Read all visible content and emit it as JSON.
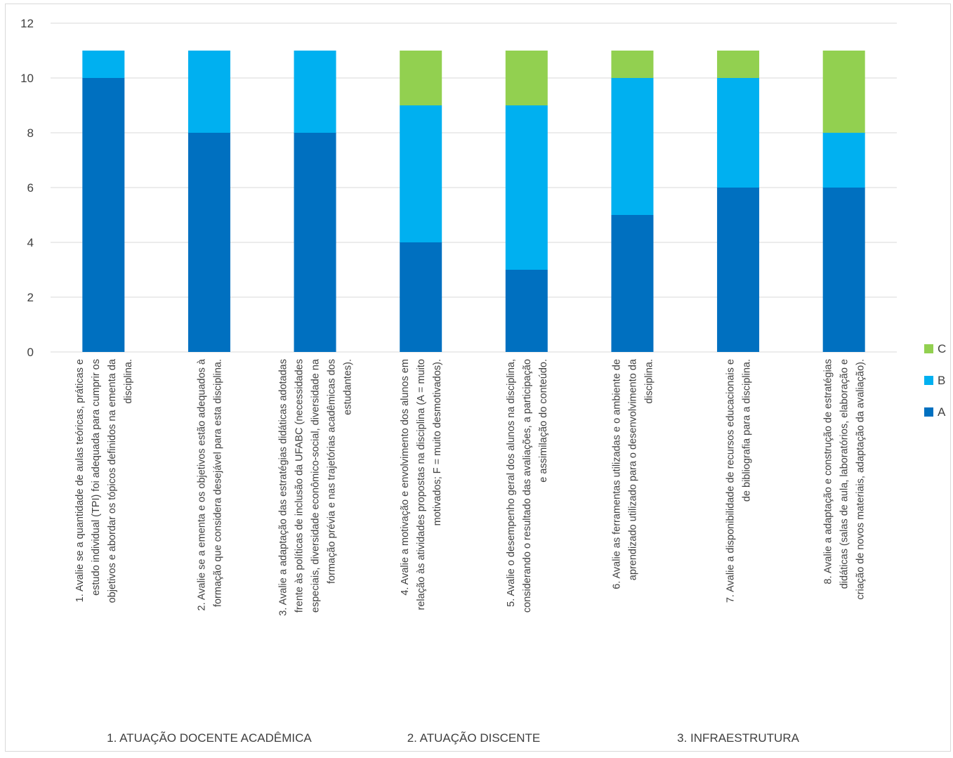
{
  "chart_data": {
    "type": "bar",
    "stacked": true,
    "title": "",
    "xlabel": "",
    "ylabel": "",
    "ylim": [
      0,
      12
    ],
    "yticks": [
      0,
      2,
      4,
      6,
      8,
      10,
      12
    ],
    "grid": true,
    "legend_position": "right",
    "categories": [
      [
        "1. Avalie se a quantidade de aulas teóricas, práticas e",
        "estudo individual (TPI) foi adequada para cumprir os",
        "objetivos e abordar os tópicos definidos na ementa da",
        "disciplina."
      ],
      [
        "2. Avalie se a ementa e os objetivos estão adequados à",
        "formação que considera desejável para esta disciplina."
      ],
      [
        "3. Avalie a adaptação das estratégias didáticas adotadas",
        "frente às políticas de inclusão da UFABC (necessidades",
        "especiais, diversidade econômico-social, diversidade na",
        "formação prévia e nas trajetórias acadêmicas dos",
        "estudantes)."
      ],
      [
        "4. Avalie a motivação e envolvimento dos alunos em",
        "relação às atividades propostas na disciplina (A = muito",
        "motivados; F = muito desmotivados)."
      ],
      [
        "5. Avalie o desempenho geral dos alunos na disciplina,",
        "considerando o resultado das avaliações, a participação",
        "e assimilação do conteúdo."
      ],
      [
        "6.  Avalie as ferramentas utilizadas e o ambiente de",
        "aprendizado utilizado para o desenvolvimento da",
        "disciplina."
      ],
      [
        "7. Avalie a disponibilidade de recursos educacionais e",
        "de bibliografia para a disciplina."
      ],
      [
        "8. Avalie a adaptação e construção de estratégias",
        "didáticas (salas de aula, laboratórios, elaboração e",
        "criação de novos materiais, adaptação da avaliação)."
      ]
    ],
    "groups": [
      {
        "label": "1. ATUAÇÃO DOCENTE ACADÊMICA",
        "categories": [
          0,
          1,
          2
        ]
      },
      {
        "label": "2. ATUAÇÃO DISCENTE",
        "categories": [
          3,
          4
        ]
      },
      {
        "label": "3. INFRAESTRUTURA",
        "categories": [
          5,
          6,
          7
        ]
      }
    ],
    "series": [
      {
        "name": "A",
        "color": "#0070c0",
        "values": [
          10,
          8,
          8,
          4,
          3,
          5,
          6,
          6
        ]
      },
      {
        "name": "B",
        "color": "#00b0f0",
        "values": [
          1,
          3,
          3,
          5,
          6,
          5,
          4,
          2
        ]
      },
      {
        "name": "C",
        "color": "#92d050",
        "values": [
          0,
          0,
          0,
          2,
          2,
          1,
          1,
          3
        ]
      }
    ]
  }
}
